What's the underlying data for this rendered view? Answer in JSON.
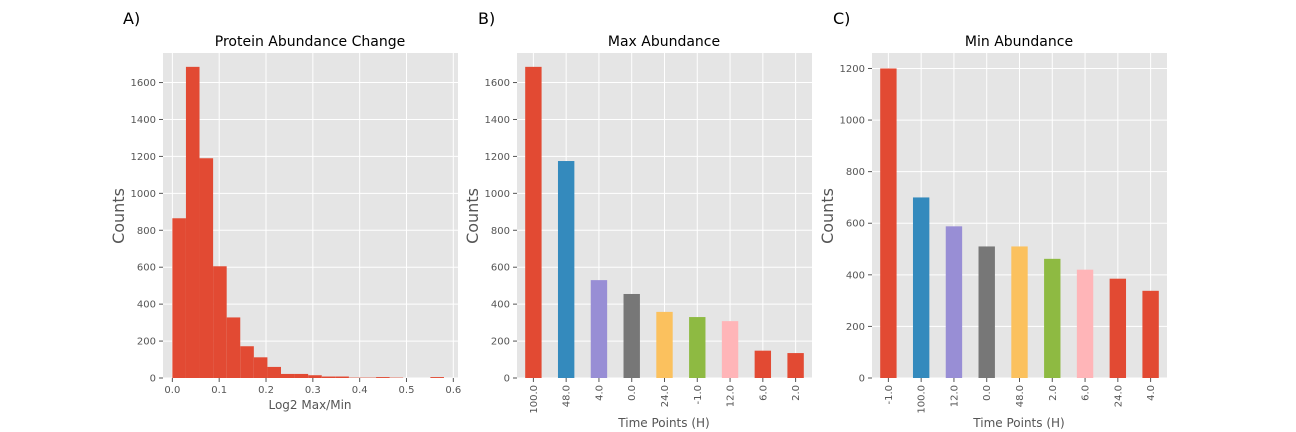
{
  "colors": {
    "background": "#E5E5E5",
    "grid": "#FFFFFF",
    "bar_red": "#E24A33",
    "palette": [
      "#E24A33",
      "#348ABD",
      "#988ED5",
      "#777777",
      "#FBC15E",
      "#8EBA42",
      "#FFB5B8"
    ]
  },
  "chart_data": [
    {
      "panel_label": "A)",
      "type": "bar",
      "subtype": "histogram",
      "title": "Protein Abundance Change",
      "xlabel": "Log2 Max/Min",
      "ylabel": "Counts",
      "xlim": [
        -0.02,
        0.61
      ],
      "ylim": [
        0,
        1760
      ],
      "xticks": [
        0.0,
        0.1,
        0.2,
        0.3,
        0.4,
        0.5,
        0.6
      ],
      "yticks": [
        0,
        200,
        400,
        600,
        800,
        1000,
        1200,
        1400,
        1600
      ],
      "bin_width": 0.029,
      "bins": [
        {
          "x0": 0.0,
          "value": 865
        },
        {
          "x0": 0.029,
          "value": 1685
        },
        {
          "x0": 0.058,
          "value": 1190
        },
        {
          "x0": 0.087,
          "value": 605
        },
        {
          "x0": 0.116,
          "value": 328
        },
        {
          "x0": 0.145,
          "value": 172
        },
        {
          "x0": 0.174,
          "value": 112
        },
        {
          "x0": 0.203,
          "value": 60
        },
        {
          "x0": 0.232,
          "value": 22
        },
        {
          "x0": 0.261,
          "value": 22
        },
        {
          "x0": 0.29,
          "value": 15
        },
        {
          "x0": 0.319,
          "value": 8
        },
        {
          "x0": 0.348,
          "value": 8
        },
        {
          "x0": 0.377,
          "value": 2
        },
        {
          "x0": 0.406,
          "value": 2
        },
        {
          "x0": 0.435,
          "value": 5
        },
        {
          "x0": 0.464,
          "value": 2
        },
        {
          "x0": 0.493,
          "value": 0
        },
        {
          "x0": 0.522,
          "value": 0
        },
        {
          "x0": 0.551,
          "value": 5
        }
      ],
      "grid": true
    },
    {
      "panel_label": "B)",
      "type": "bar",
      "title": "Max Abundance",
      "xlabel": "Time Points (H)",
      "ylabel": "Counts",
      "ylim": [
        0,
        1760
      ],
      "yticks": [
        0,
        200,
        400,
        600,
        800,
        1000,
        1200,
        1400,
        1600
      ],
      "categories": [
        "100.0",
        "48.0",
        "4.0",
        "0.0",
        "24.0",
        "-1.0",
        "12.0",
        "6.0",
        "2.0"
      ],
      "values": [
        1685,
        1175,
        530,
        455,
        358,
        330,
        308,
        148,
        135
      ],
      "bar_colors": [
        "#E24A33",
        "#348ABD",
        "#988ED5",
        "#777777",
        "#FBC15E",
        "#8EBA42",
        "#FFB5B8",
        "#E24A33",
        "#E24A33"
      ],
      "grid": true
    },
    {
      "panel_label": "C)",
      "type": "bar",
      "title": "Min Abundance",
      "xlabel": "Time Points (H)",
      "ylabel": "Counts",
      "ylim": [
        0,
        1260
      ],
      "yticks": [
        0,
        200,
        400,
        600,
        800,
        1000,
        1200
      ],
      "categories": [
        "-1.0",
        "100.0",
        "12.0",
        "0.0",
        "48.0",
        "2.0",
        "6.0",
        "24.0",
        "4.0"
      ],
      "values": [
        1200,
        700,
        588,
        510,
        510,
        462,
        420,
        385,
        338
      ],
      "bar_colors": [
        "#E24A33",
        "#348ABD",
        "#988ED5",
        "#777777",
        "#FBC15E",
        "#8EBA42",
        "#FFB5B8",
        "#E24A33",
        "#E24A33"
      ],
      "grid": true
    }
  ]
}
